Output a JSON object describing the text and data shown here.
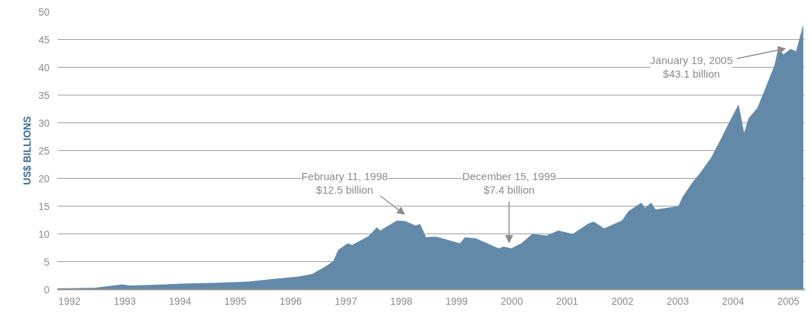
{
  "chart_data": {
    "type": "area",
    "ylabel": "US$ BILLIONS",
    "x": [
      1991.78,
      1992.45,
      1992.95,
      1993.08,
      1993.72,
      1994.16,
      1994.61,
      1995.23,
      1995.69,
      1996.13,
      1996.39,
      1996.64,
      1996.77,
      1996.86,
      1997.03,
      1997.11,
      1997.41,
      1997.56,
      1997.62,
      1997.92,
      1998.07,
      1998.26,
      1998.34,
      1998.45,
      1998.53,
      1998.64,
      1999.06,
      1999.15,
      1999.35,
      1999.76,
      1999.85,
      1999.99,
      2000.17,
      2000.37,
      2000.63,
      2000.84,
      2001.1,
      2001.39,
      2001.48,
      2001.67,
      2001.99,
      2002.11,
      2002.34,
      2002.41,
      2002.52,
      2002.6,
      2003.01,
      2003.09,
      2003.26,
      2003.42,
      2003.6,
      2003.77,
      2003.93,
      2004.1,
      2004.15,
      2004.2,
      2004.28,
      2004.44,
      2004.57,
      2004.75,
      2004.82,
      2004.91,
      2005.04,
      2005.14,
      2005.21,
      2005.27
    ],
    "series": [
      {
        "color": "#6389a9",
        "values": [
          0.2,
          0.3,
          0.9,
          0.7,
          0.9,
          1.1,
          1.2,
          1.4,
          1.9,
          2.3,
          2.8,
          4.2,
          5.1,
          7.1,
          8.3,
          8.0,
          9.6,
          11.2,
          10.6,
          12.4,
          12.3,
          11.5,
          11.8,
          9.4,
          9.5,
          9.5,
          8.3,
          9.4,
          9.2,
          7.4,
          7.7,
          7.4,
          8.3,
          10.0,
          9.7,
          10.6,
          10.0,
          11.9,
          12.2,
          11.0,
          12.4,
          14.1,
          15.6,
          14.7,
          15.6,
          14.4,
          15.0,
          16.7,
          19.2,
          21.2,
          23.7,
          26.9,
          30.1,
          33.3,
          30.8,
          28.2,
          30.8,
          32.7,
          35.9,
          40.4,
          43.6,
          42.3,
          43.3,
          42.9,
          45.5,
          47.7
        ]
      }
    ],
    "xlim": [
      1991.78,
      2005.3
    ],
    "xticks": [
      1992,
      1993,
      1994,
      1995,
      1996,
      1997,
      1998,
      1999,
      2000,
      2001,
      2002,
      2003,
      2004,
      2005
    ],
    "ylim": [
      0,
      50
    ],
    "yticks": [
      0,
      5,
      10,
      15,
      20,
      25,
      30,
      35,
      40,
      45,
      50
    ],
    "grid": "y",
    "annotations": [
      {
        "text": "February 11, 1998\n$12.5 billion",
        "x": 1998.11,
        "y": 12.5
      },
      {
        "text": "December 15, 1999\n$7.4 billion",
        "x": 1999.95,
        "y": 7.4
      },
      {
        "text": "January 19, 2005\n$43.1 billion",
        "x": 2005.05,
        "y": 43.1
      }
    ]
  }
}
